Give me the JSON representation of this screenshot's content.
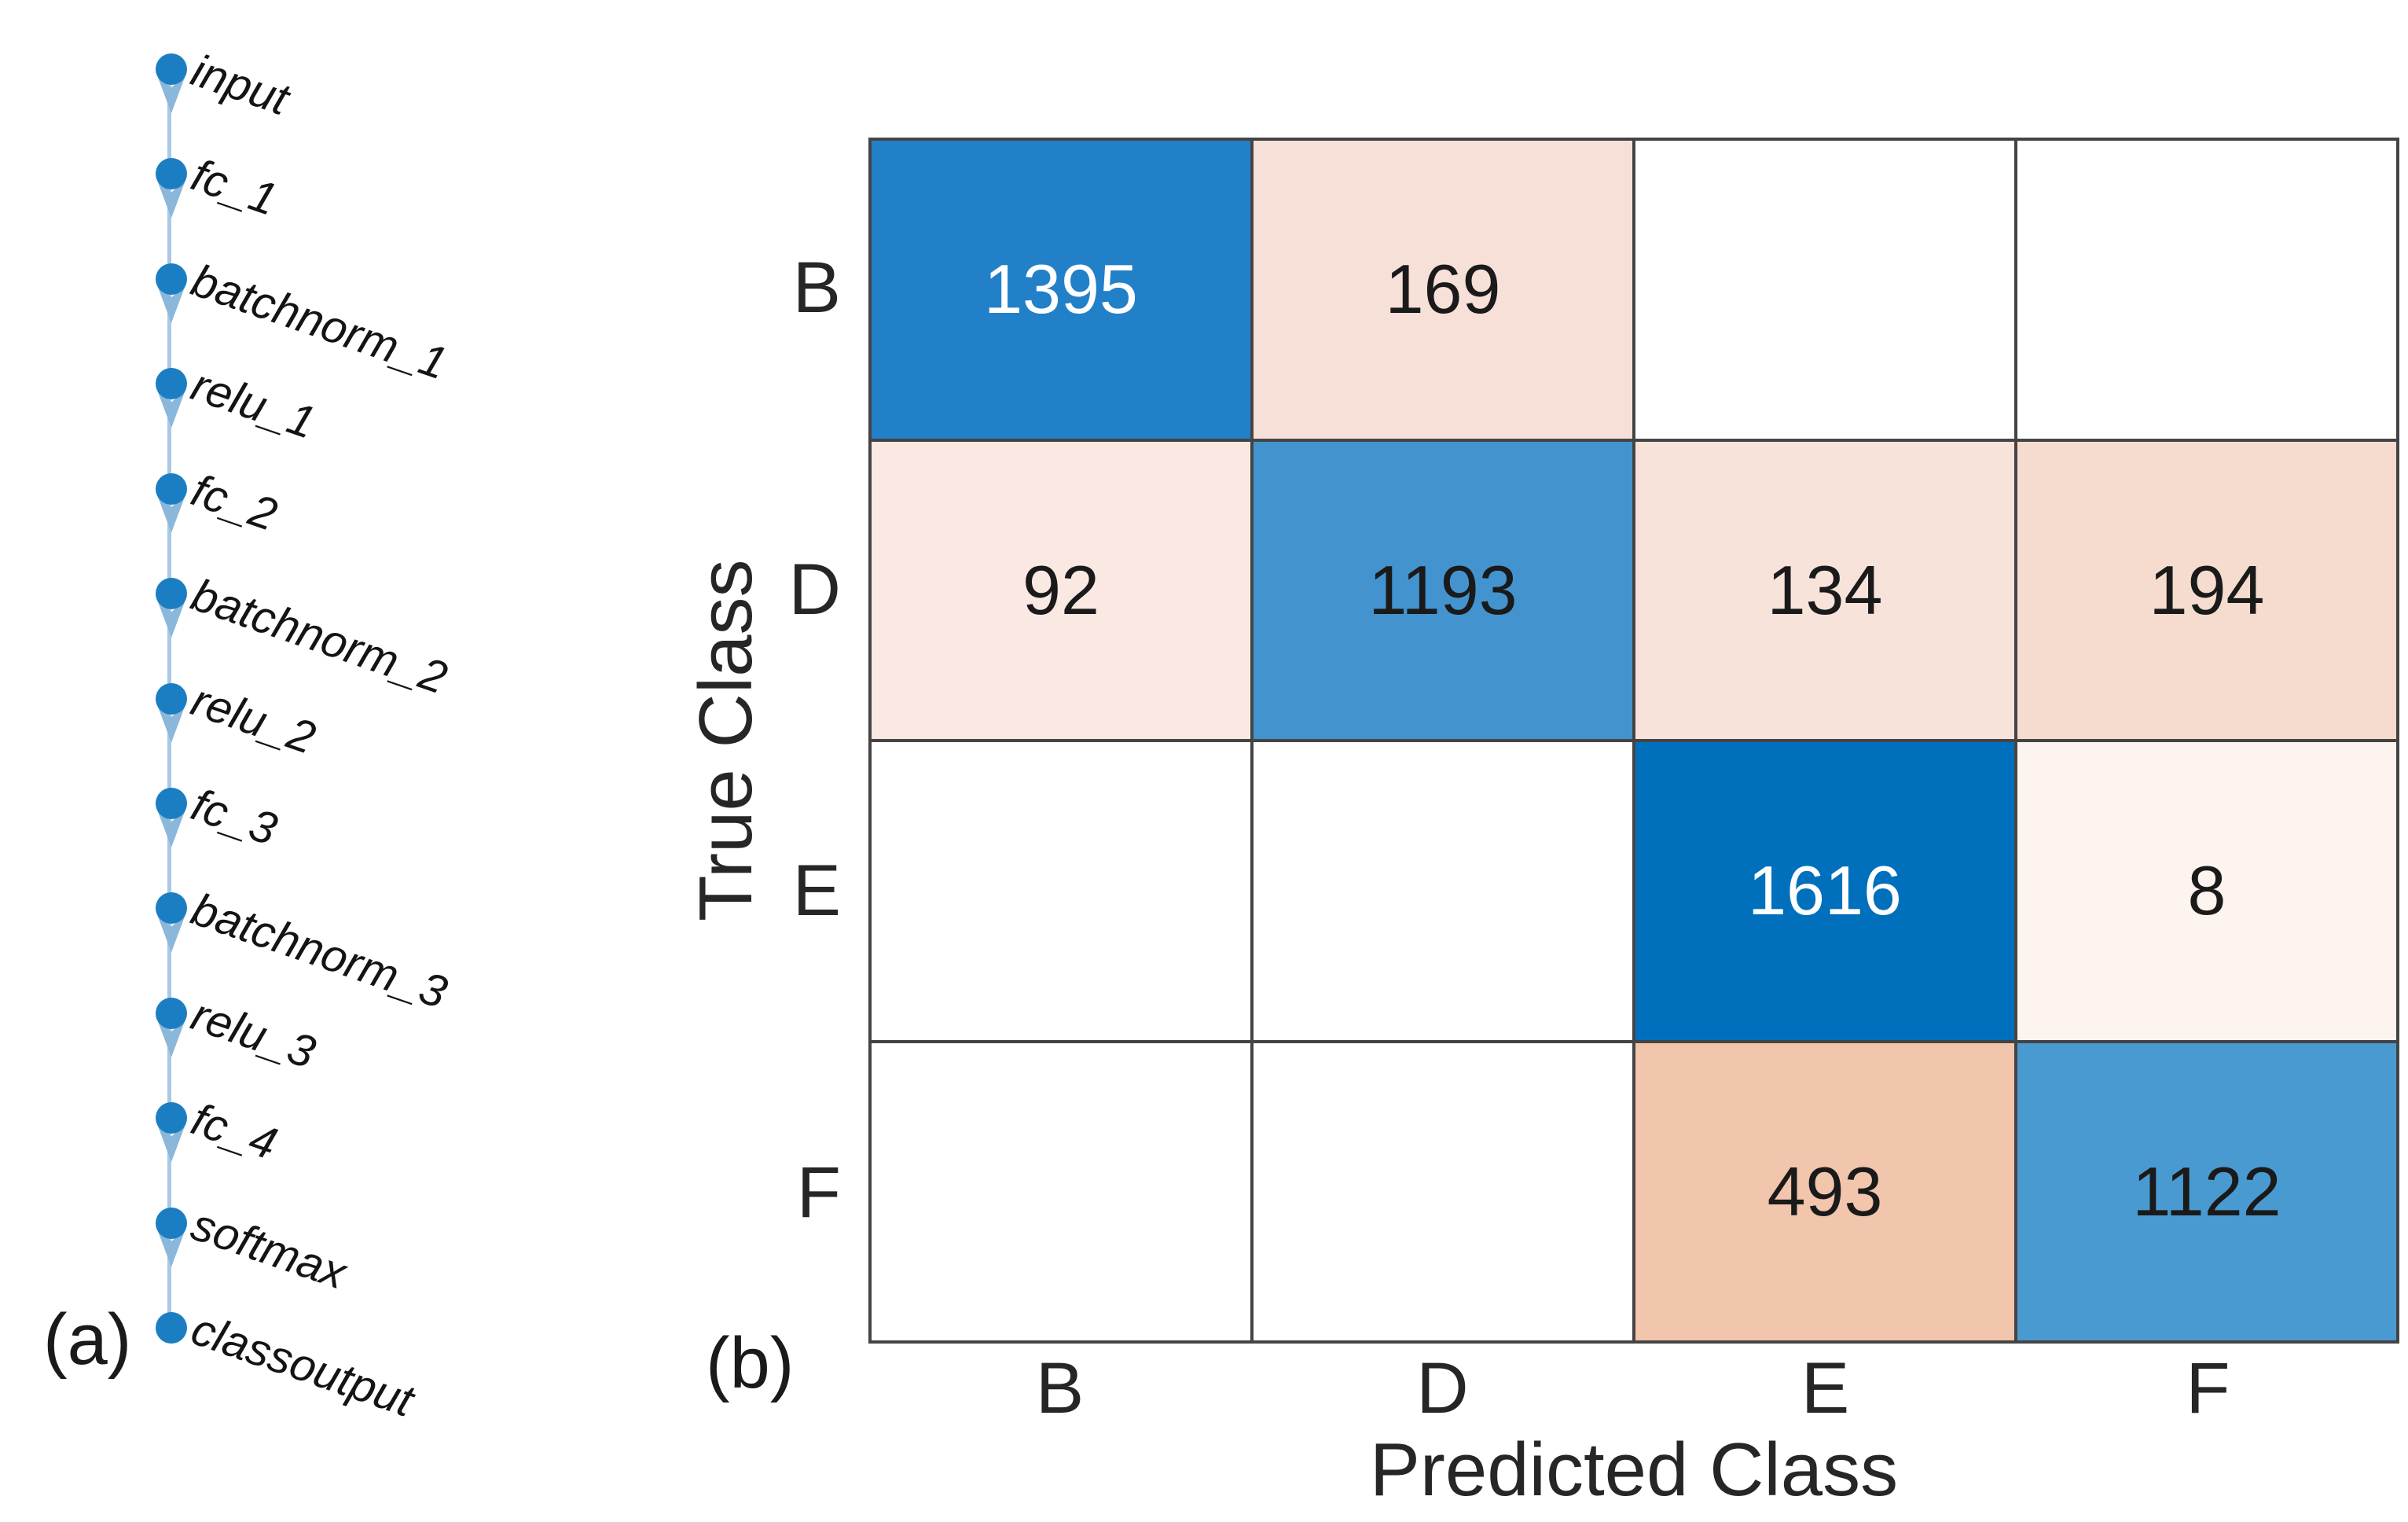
{
  "figure": {
    "panel_a_label": "(a)",
    "panel_b_label": "(b)",
    "background": "#ffffff"
  },
  "network": {
    "layers": [
      "input",
      "fc_1",
      "batchnorm_1",
      "relu_1",
      "fc_2",
      "batchnorm_2",
      "relu_2",
      "fc_3",
      "batchnorm_3",
      "relu_3",
      "fc_4",
      "softmax",
      "classoutput"
    ],
    "node_color": "#1b7ec2",
    "edge_color": "#a9c9e5",
    "arrow_color": "#8ab7da",
    "label_color": "#141414"
  },
  "chart_data": {
    "type": "heatmap",
    "xlabel": "Predicted Class",
    "ylabel": "True Class",
    "x_categories": [
      "B",
      "D",
      "E",
      "F"
    ],
    "y_categories": [
      "B",
      "D",
      "E",
      "F"
    ],
    "matrix": [
      [
        1395,
        169,
        null,
        null
      ],
      [
        92,
        1193,
        134,
        194
      ],
      [
        null,
        null,
        1616,
        8
      ],
      [
        null,
        null,
        493,
        1122
      ]
    ],
    "cells": [
      [
        {
          "value": "1395",
          "bg": "#2280c8",
          "fg": "#ffffff"
        },
        {
          "value": "169",
          "bg": "#f7e0d7",
          "fg": "#1a1a1a"
        },
        {
          "value": "",
          "bg": "#ffffff",
          "fg": "#1a1a1a"
        },
        {
          "value": "",
          "bg": "#ffffff",
          "fg": "#1a1a1a"
        }
      ],
      [
        {
          "value": "92",
          "bg": "#fae9e3",
          "fg": "#1a1a1a"
        },
        {
          "value": "1193",
          "bg": "#4394ce",
          "fg": "#1a1a1a"
        },
        {
          "value": "134",
          "bg": "#f8e3db",
          "fg": "#1a1a1a"
        },
        {
          "value": "194",
          "bg": "#f5dccf",
          "fg": "#1a1a1a"
        }
      ],
      [
        {
          "value": "",
          "bg": "#ffffff",
          "fg": "#1a1a1a"
        },
        {
          "value": "",
          "bg": "#ffffff",
          "fg": "#1a1a1a"
        },
        {
          "value": "1616",
          "bg": "#0070bd",
          "fg": "#ffffff"
        },
        {
          "value": "8",
          "bg": "#fdf3ef",
          "fg": "#1a1a1a"
        }
      ],
      [
        {
          "value": "",
          "bg": "#ffffff",
          "fg": "#1a1a1a"
        },
        {
          "value": "",
          "bg": "#ffffff",
          "fg": "#1a1a1a"
        },
        {
          "value": "493",
          "bg": "#f2c5ad",
          "fg": "#1a1a1a"
        },
        {
          "value": "1122",
          "bg": "#4a9ad2",
          "fg": "#1a1a1a"
        }
      ]
    ],
    "grid_line_color": "#444444",
    "tick_color": "#262626",
    "legend": "none",
    "grid": "on"
  }
}
